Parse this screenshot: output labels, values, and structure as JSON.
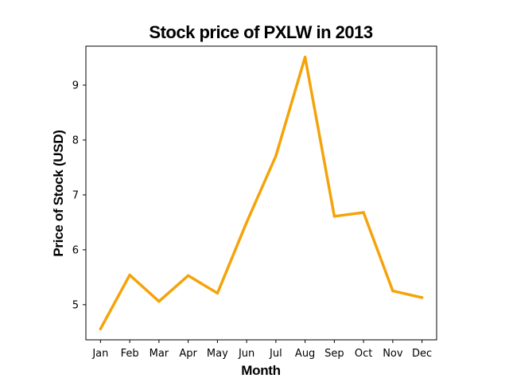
{
  "chart_data": {
    "type": "line",
    "title": "Stock price of PXLW in 2013",
    "xlabel": "Month",
    "ylabel": "Price of Stock (USD)",
    "categories": [
      "Jan",
      "Feb",
      "Mar",
      "Apr",
      "May",
      "Jun",
      "Jul",
      "Aug",
      "Sep",
      "Oct",
      "Nov",
      "Dec"
    ],
    "series": [
      {
        "values": [
          4.56,
          5.54,
          5.06,
          5.53,
          5.21,
          6.5,
          7.71,
          9.51,
          6.61,
          6.68,
          5.25,
          5.13
        ],
        "color": "#f5a30a"
      }
    ],
    "yticks": [
      5,
      6,
      7,
      8,
      9
    ],
    "ylim": [
      4.36,
      9.71
    ],
    "grid": false,
    "legend": "none"
  }
}
